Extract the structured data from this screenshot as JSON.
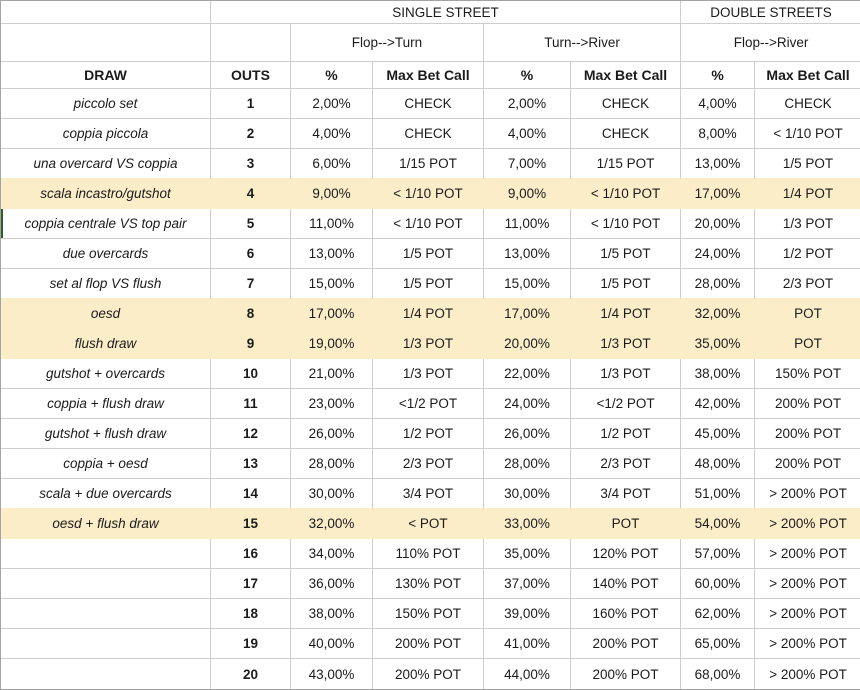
{
  "table": {
    "headers": {
      "single_street": "SINGLE STREET",
      "double_streets": "DOUBLE STREETS",
      "flop_turn": "Flop-->Turn",
      "turn_river": "Turn-->River",
      "flop_river": "Flop-->River",
      "draw": "DRAW",
      "outs": "OUTS",
      "pct": "%",
      "max_bet_call": "Max Bet Call"
    },
    "rows": [
      {
        "draw": "piccolo set",
        "outs": "1",
        "ft_pct": "2,00%",
        "ft_call": "CHECK",
        "tr_pct": "2,00%",
        "tr_call": "CHECK",
        "fr_pct": "4,00%",
        "fr_call": "CHECK",
        "highlighted": false,
        "green_marker": false
      },
      {
        "draw": "coppia piccola",
        "outs": "2",
        "ft_pct": "4,00%",
        "ft_call": "CHECK",
        "tr_pct": "4,00%",
        "tr_call": "CHECK",
        "fr_pct": "8,00%",
        "fr_call": "< 1/10 POT",
        "highlighted": false,
        "green_marker": false
      },
      {
        "draw": "una overcard VS coppia",
        "outs": "3",
        "ft_pct": "6,00%",
        "ft_call": "1/15 POT",
        "tr_pct": "7,00%",
        "tr_call": "1/15 POT",
        "fr_pct": "13,00%",
        "fr_call": "1/5 POT",
        "highlighted": false,
        "green_marker": false
      },
      {
        "draw": "scala incastro/gutshot",
        "outs": "4",
        "ft_pct": "9,00%",
        "ft_call": "< 1/10 POT",
        "tr_pct": "9,00%",
        "tr_call": "< 1/10 POT",
        "fr_pct": "17,00%",
        "fr_call": "1/4 POT",
        "highlighted": true,
        "green_marker": false
      },
      {
        "draw": "coppia centrale VS top pair",
        "outs": "5",
        "ft_pct": "11,00%",
        "ft_call": "< 1/10 POT",
        "tr_pct": "11,00%",
        "tr_call": "< 1/10 POT",
        "fr_pct": "20,00%",
        "fr_call": "1/3 POT",
        "highlighted": false,
        "green_marker": true
      },
      {
        "draw": "due overcards",
        "outs": "6",
        "ft_pct": "13,00%",
        "ft_call": "1/5 POT",
        "tr_pct": "13,00%",
        "tr_call": "1/5 POT",
        "fr_pct": "24,00%",
        "fr_call": "1/2 POT",
        "highlighted": false,
        "green_marker": false
      },
      {
        "draw": "set al flop VS flush",
        "outs": "7",
        "ft_pct": "15,00%",
        "ft_call": "1/5 POT",
        "tr_pct": "15,00%",
        "tr_call": "1/5 POT",
        "fr_pct": "28,00%",
        "fr_call": "2/3 POT",
        "highlighted": false,
        "green_marker": false
      },
      {
        "draw": "oesd",
        "outs": "8",
        "ft_pct": "17,00%",
        "ft_call": "1/4 POT",
        "tr_pct": "17,00%",
        "tr_call": "1/4 POT",
        "fr_pct": "32,00%",
        "fr_call": "POT",
        "highlighted": true,
        "green_marker": false
      },
      {
        "draw": "flush draw",
        "outs": "9",
        "ft_pct": "19,00%",
        "ft_call": "1/3 POT",
        "tr_pct": "20,00%",
        "tr_call": "1/3 POT",
        "fr_pct": "35,00%",
        "fr_call": "POT",
        "highlighted": true,
        "green_marker": false
      },
      {
        "draw": "gutshot + overcards",
        "outs": "10",
        "ft_pct": "21,00%",
        "ft_call": "1/3 POT",
        "tr_pct": "22,00%",
        "tr_call": "1/3 POT",
        "fr_pct": "38,00%",
        "fr_call": "150% POT",
        "highlighted": false,
        "green_marker": false
      },
      {
        "draw": "coppia + flush draw",
        "outs": "11",
        "ft_pct": "23,00%",
        "ft_call": "<1/2 POT",
        "tr_pct": "24,00%",
        "tr_call": "<1/2 POT",
        "fr_pct": "42,00%",
        "fr_call": "200% POT",
        "highlighted": false,
        "green_marker": false
      },
      {
        "draw": "gutshot + flush draw",
        "outs": "12",
        "ft_pct": "26,00%",
        "ft_call": "1/2 POT",
        "tr_pct": "26,00%",
        "tr_call": "1/2 POT",
        "fr_pct": "45,00%",
        "fr_call": "200% POT",
        "highlighted": false,
        "green_marker": false
      },
      {
        "draw": "coppia + oesd",
        "outs": "13",
        "ft_pct": "28,00%",
        "ft_call": "2/3 POT",
        "tr_pct": "28,00%",
        "tr_call": "2/3 POT",
        "fr_pct": "48,00%",
        "fr_call": "200% POT",
        "highlighted": false,
        "green_marker": false
      },
      {
        "draw": "scala + due overcards",
        "outs": "14",
        "ft_pct": "30,00%",
        "ft_call": "3/4 POT",
        "tr_pct": "30,00%",
        "tr_call": "3/4 POT",
        "fr_pct": "51,00%",
        "fr_call": "> 200% POT",
        "highlighted": false,
        "green_marker": false
      },
      {
        "draw": "oesd + flush draw",
        "outs": "15",
        "ft_pct": "32,00%",
        "ft_call": "< POT",
        "tr_pct": "33,00%",
        "tr_call": "POT",
        "fr_pct": "54,00%",
        "fr_call": "> 200% POT",
        "highlighted": true,
        "green_marker": false
      },
      {
        "draw": "",
        "outs": "16",
        "ft_pct": "34,00%",
        "ft_call": "110% POT",
        "tr_pct": "35,00%",
        "tr_call": "120% POT",
        "fr_pct": "57,00%",
        "fr_call": "> 200% POT",
        "highlighted": false,
        "green_marker": false
      },
      {
        "draw": "",
        "outs": "17",
        "ft_pct": "36,00%",
        "ft_call": "130% POT",
        "tr_pct": "37,00%",
        "tr_call": "140% POT",
        "fr_pct": "60,00%",
        "fr_call": "> 200% POT",
        "highlighted": false,
        "green_marker": false
      },
      {
        "draw": "",
        "outs": "18",
        "ft_pct": "38,00%",
        "ft_call": "150% POT",
        "tr_pct": "39,00%",
        "tr_call": "160% POT",
        "fr_pct": "62,00%",
        "fr_call": "> 200% POT",
        "highlighted": false,
        "green_marker": false
      },
      {
        "draw": "",
        "outs": "19",
        "ft_pct": "40,00%",
        "ft_call": "200% POT",
        "tr_pct": "41,00%",
        "tr_call": "200% POT",
        "fr_pct": "65,00%",
        "fr_call": "> 200% POT",
        "highlighted": false,
        "green_marker": false
      },
      {
        "draw": "",
        "outs": "20",
        "ft_pct": "43,00%",
        "ft_call": "200% POT",
        "tr_pct": "44,00%",
        "tr_call": "200% POT",
        "fr_pct": "68,00%",
        "fr_call": "> 200% POT",
        "highlighted": false,
        "green_marker": false
      }
    ]
  },
  "colors": {
    "highlight_fill": "#FCEDC9",
    "gridline": "#CDCDCD",
    "outer_border": "#A3A3A3",
    "green_marker": "#2F5D2B",
    "text": "#1B1B1B"
  }
}
